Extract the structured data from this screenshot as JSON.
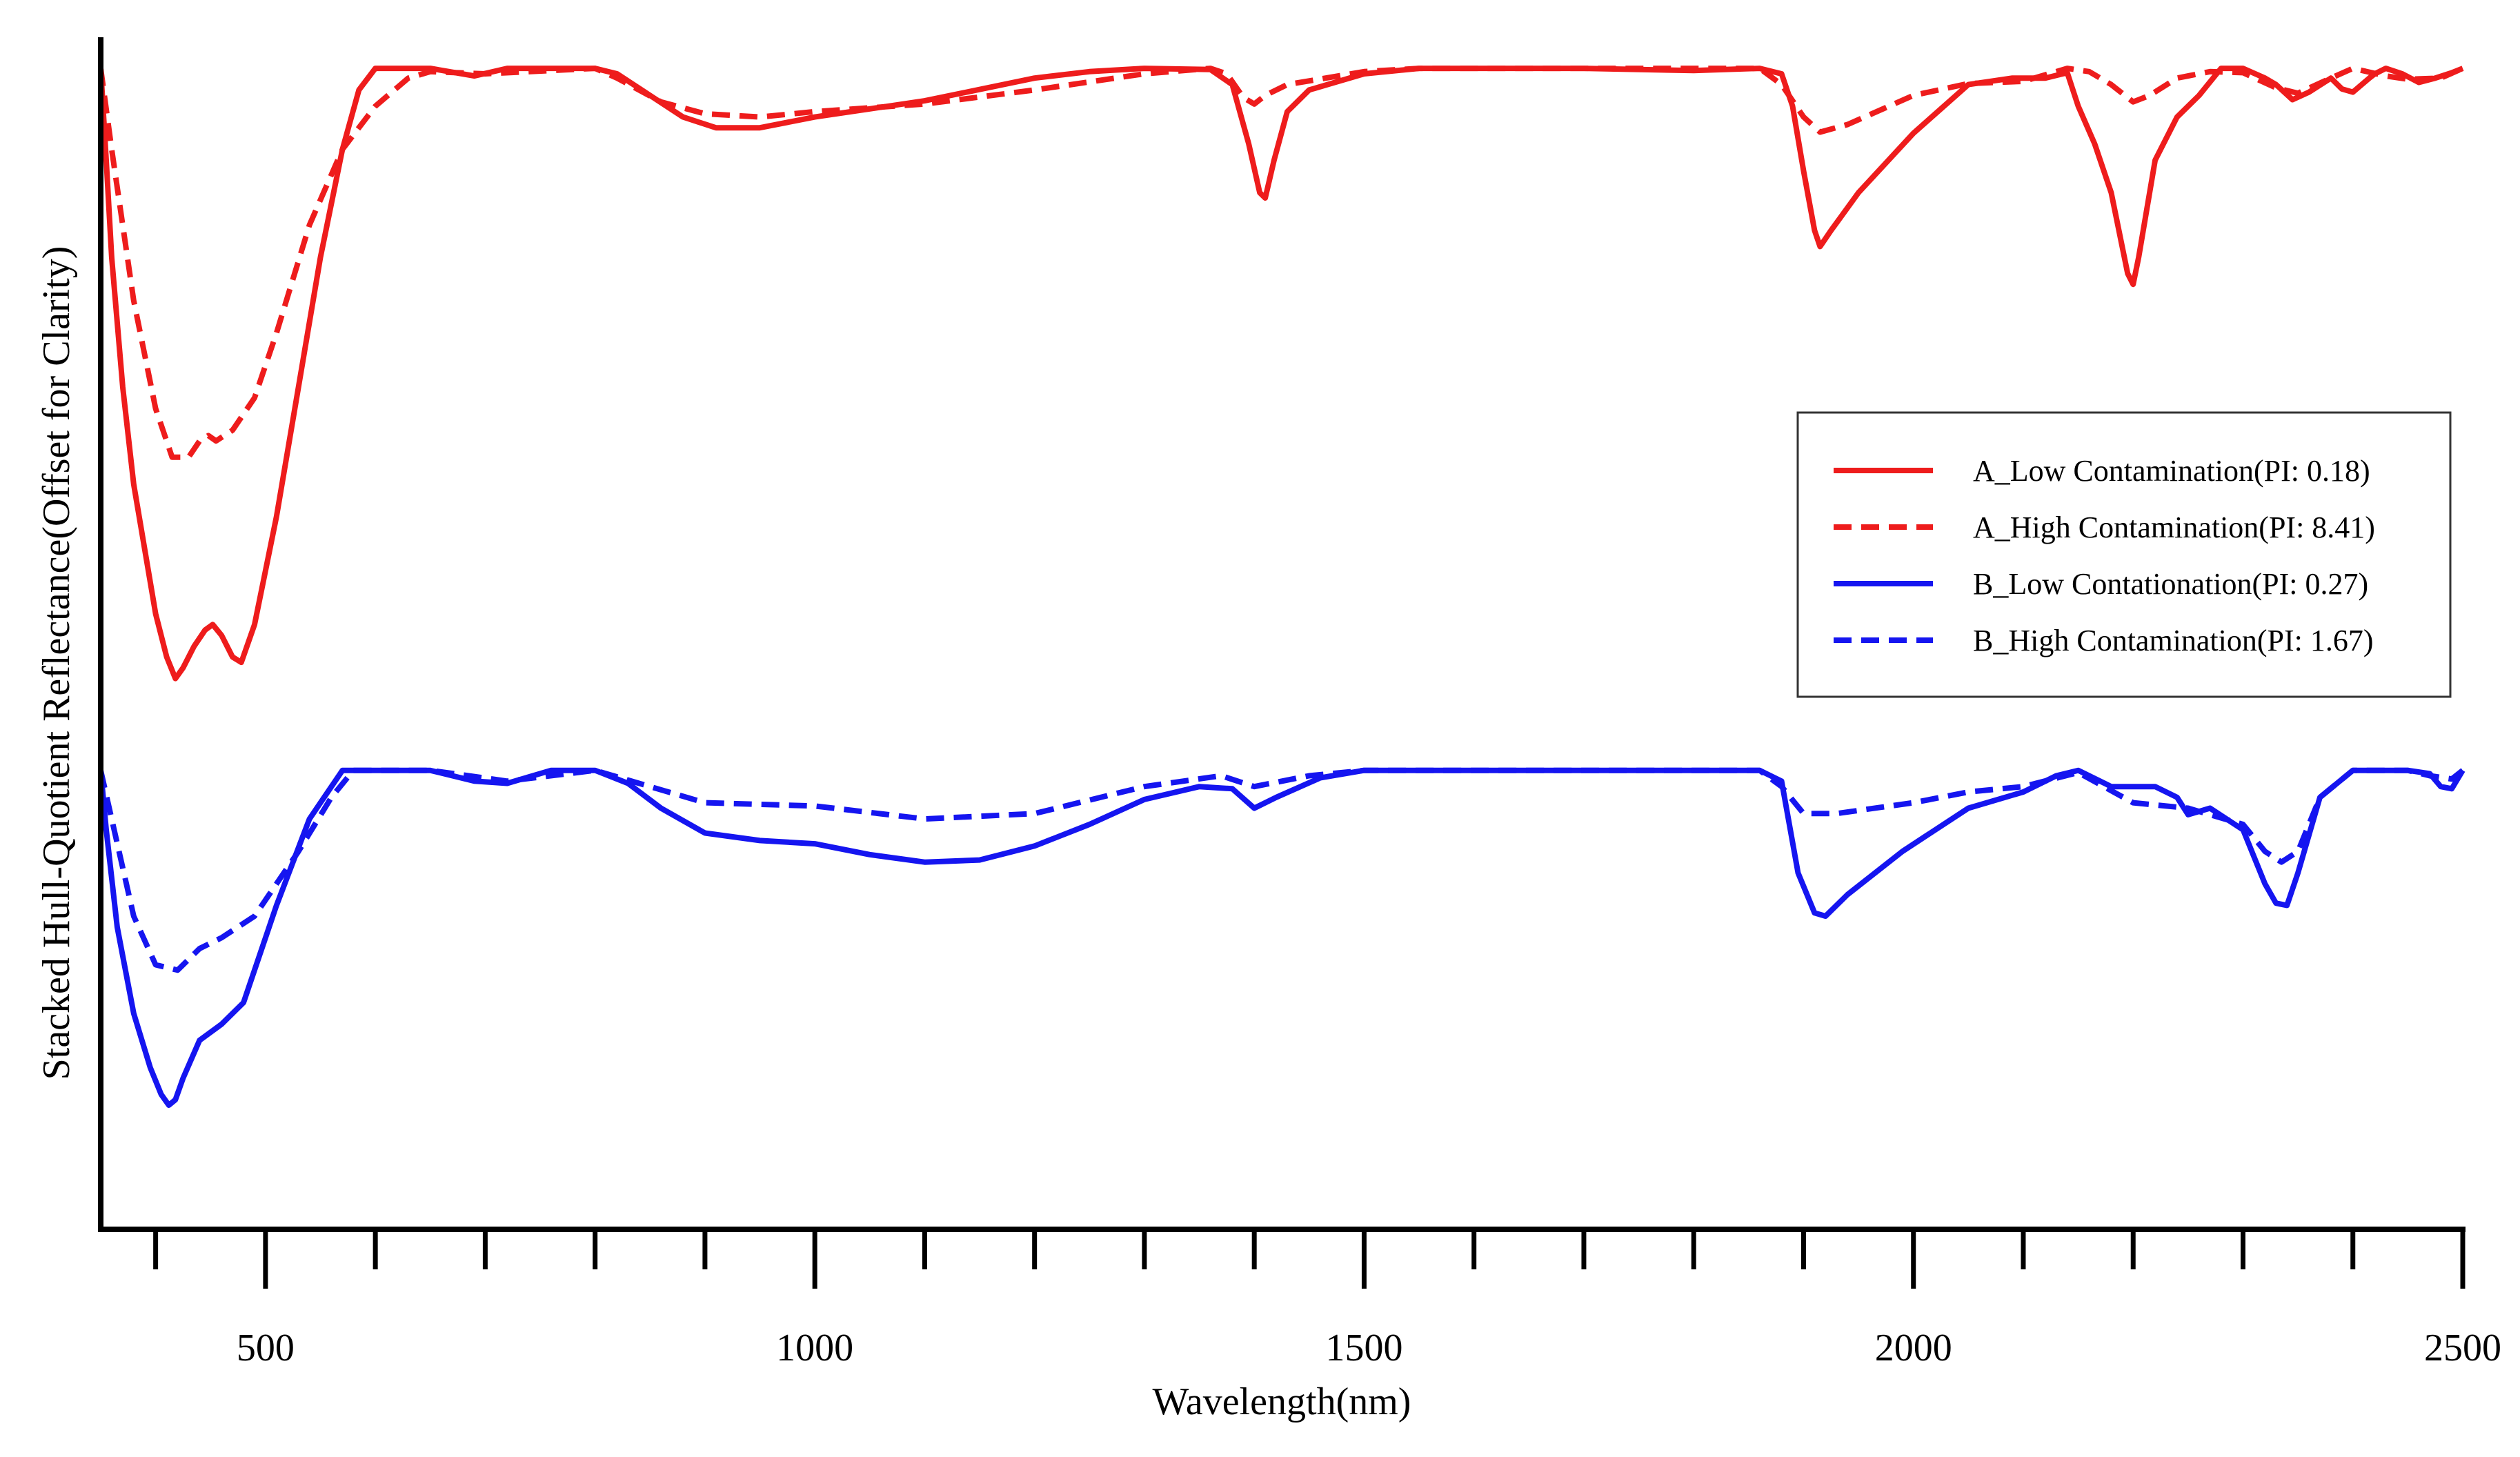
{
  "chart_data": {
    "type": "line",
    "title": "",
    "xlabel": "Wavelength(nm)",
    "ylabel": "Stacked Hull-Quotient Reflectance(Offset for Clarity)",
    "xlim": [
      350,
      2500
    ],
    "ylim": [
      0,
      1.1
    ],
    "x_major_ticks": [
      500,
      1000,
      1500,
      2000,
      2500
    ],
    "x_tick_labels": [
      "500",
      "1000",
      "1500",
      "2000",
      "2500"
    ],
    "x_minor_step": 100,
    "y_ticks_shown": false,
    "grid": false,
    "legend": {
      "position": "right",
      "entries": [
        {
          "label": "A_Low Contamination(PI: 0.18)",
          "color": "#ee1c1c",
          "style": "solid"
        },
        {
          "label": "A_High Contamination(PI: 8.41)",
          "color": "#ee1c1c",
          "style": "dashed"
        },
        {
          "label": "B_Low Contationation(PI: 0.27)",
          "color": "#1515f0",
          "style": "solid"
        },
        {
          "label": "B_High Contamination(PI: 1.67)",
          "color": "#1515f0",
          "style": "dashed"
        }
      ]
    },
    "series": [
      {
        "name": "A_Low Contamination(PI: 0.18)",
        "color": "#ee1c1c",
        "style": "solid",
        "points": [
          [
            350,
            1.075
          ],
          [
            355,
            0.99
          ],
          [
            360,
            0.9
          ],
          [
            370,
            0.78
          ],
          [
            380,
            0.69
          ],
          [
            390,
            0.63
          ],
          [
            400,
            0.57
          ],
          [
            410,
            0.53
          ],
          [
            418,
            0.51
          ],
          [
            425,
            0.52
          ],
          [
            435,
            0.54
          ],
          [
            445,
            0.555
          ],
          [
            452,
            0.56
          ],
          [
            460,
            0.55
          ],
          [
            470,
            0.53
          ],
          [
            478,
            0.525
          ],
          [
            490,
            0.56
          ],
          [
            510,
            0.66
          ],
          [
            530,
            0.78
          ],
          [
            550,
            0.9
          ],
          [
            570,
            1.0
          ],
          [
            585,
            1.055
          ],
          [
            600,
            1.075
          ],
          [
            650,
            1.075
          ],
          [
            690,
            1.068
          ],
          [
            720,
            1.075
          ],
          [
            800,
            1.075
          ],
          [
            820,
            1.07
          ],
          [
            850,
            1.05
          ],
          [
            880,
            1.03
          ],
          [
            910,
            1.02
          ],
          [
            950,
            1.02
          ],
          [
            1000,
            1.03
          ],
          [
            1100,
            1.045
          ],
          [
            1200,
            1.066
          ],
          [
            1250,
            1.072
          ],
          [
            1300,
            1.075
          ],
          [
            1360,
            1.074
          ],
          [
            1380,
            1.06
          ],
          [
            1395,
            1.005
          ],
          [
            1405,
            0.96
          ],
          [
            1410,
            0.955
          ],
          [
            1418,
            0.99
          ],
          [
            1430,
            1.035
          ],
          [
            1450,
            1.055
          ],
          [
            1500,
            1.07
          ],
          [
            1550,
            1.075
          ],
          [
            1700,
            1.075
          ],
          [
            1800,
            1.073
          ],
          [
            1860,
            1.075
          ],
          [
            1880,
            1.07
          ],
          [
            1890,
            1.04
          ],
          [
            1900,
            0.98
          ],
          [
            1910,
            0.925
          ],
          [
            1915,
            0.91
          ],
          [
            1925,
            0.925
          ],
          [
            1950,
            0.96
          ],
          [
            2000,
            1.015
          ],
          [
            2050,
            1.06
          ],
          [
            2090,
            1.066
          ],
          [
            2120,
            1.066
          ],
          [
            2140,
            1.071
          ],
          [
            2150,
            1.04
          ],
          [
            2165,
            1.005
          ],
          [
            2180,
            0.96
          ],
          [
            2195,
            0.885
          ],
          [
            2200,
            0.875
          ],
          [
            2205,
            0.9
          ],
          [
            2220,
            0.99
          ],
          [
            2240,
            1.03
          ],
          [
            2260,
            1.05
          ],
          [
            2280,
            1.075
          ],
          [
            2300,
            1.075
          ],
          [
            2320,
            1.066
          ],
          [
            2330,
            1.06
          ],
          [
            2345,
            1.046
          ],
          [
            2360,
            1.053
          ],
          [
            2380,
            1.066
          ],
          [
            2390,
            1.056
          ],
          [
            2400,
            1.053
          ],
          [
            2415,
            1.066
          ],
          [
            2420,
            1.07
          ],
          [
            2430,
            1.075
          ],
          [
            2445,
            1.07
          ],
          [
            2460,
            1.062
          ],
          [
            2475,
            1.066
          ],
          [
            2490,
            1.071
          ],
          [
            2500,
            1.075
          ]
        ]
      },
      {
        "name": "A_High Contamination(PI: 8.41)",
        "color": "#ee1c1c",
        "style": "dashed",
        "points": [
          [
            350,
            1.075
          ],
          [
            360,
            1.0
          ],
          [
            380,
            0.86
          ],
          [
            400,
            0.76
          ],
          [
            415,
            0.715
          ],
          [
            430,
            0.715
          ],
          [
            440,
            0.73
          ],
          [
            448,
            0.735
          ],
          [
            455,
            0.73
          ],
          [
            470,
            0.74
          ],
          [
            490,
            0.77
          ],
          [
            510,
            0.83
          ],
          [
            540,
            0.93
          ],
          [
            570,
            1.0
          ],
          [
            600,
            1.04
          ],
          [
            630,
            1.066
          ],
          [
            650,
            1.072
          ],
          [
            700,
            1.07
          ],
          [
            800,
            1.075
          ],
          [
            820,
            1.066
          ],
          [
            860,
            1.044
          ],
          [
            900,
            1.033
          ],
          [
            950,
            1.03
          ],
          [
            1000,
            1.035
          ],
          [
            1100,
            1.042
          ],
          [
            1200,
            1.055
          ],
          [
            1300,
            1.07
          ],
          [
            1360,
            1.075
          ],
          [
            1375,
            1.07
          ],
          [
            1390,
            1.048
          ],
          [
            1400,
            1.042
          ],
          [
            1410,
            1.05
          ],
          [
            1430,
            1.06
          ],
          [
            1500,
            1.072
          ],
          [
            1550,
            1.075
          ],
          [
            1800,
            1.075
          ],
          [
            1860,
            1.075
          ],
          [
            1880,
            1.06
          ],
          [
            1900,
            1.03
          ],
          [
            1915,
            1.016
          ],
          [
            1940,
            1.023
          ],
          [
            2000,
            1.05
          ],
          [
            2050,
            1.061
          ],
          [
            2100,
            1.063
          ],
          [
            2140,
            1.075
          ],
          [
            2160,
            1.072
          ],
          [
            2180,
            1.06
          ],
          [
            2200,
            1.044
          ],
          [
            2215,
            1.05
          ],
          [
            2240,
            1.066
          ],
          [
            2270,
            1.072
          ],
          [
            2300,
            1.071
          ],
          [
            2330,
            1.057
          ],
          [
            2350,
            1.052
          ],
          [
            2380,
            1.066
          ],
          [
            2400,
            1.075
          ],
          [
            2430,
            1.068
          ],
          [
            2450,
            1.065
          ],
          [
            2480,
            1.066
          ],
          [
            2500,
            1.075
          ]
        ]
      },
      {
        "name": "B_Low Contationation(PI: 0.27)",
        "color": "#1515f0",
        "style": "solid",
        "points": [
          [
            350,
            0.425
          ],
          [
            355,
            0.37
          ],
          [
            365,
            0.28
          ],
          [
            380,
            0.2
          ],
          [
            395,
            0.15
          ],
          [
            405,
            0.125
          ],
          [
            412,
            0.115
          ],
          [
            418,
            0.12
          ],
          [
            425,
            0.14
          ],
          [
            440,
            0.175
          ],
          [
            460,
            0.19
          ],
          [
            480,
            0.21
          ],
          [
            510,
            0.3
          ],
          [
            540,
            0.38
          ],
          [
            570,
            0.425
          ],
          [
            600,
            0.425
          ],
          [
            650,
            0.425
          ],
          [
            690,
            0.415
          ],
          [
            720,
            0.413
          ],
          [
            760,
            0.425
          ],
          [
            800,
            0.425
          ],
          [
            830,
            0.413
          ],
          [
            860,
            0.39
          ],
          [
            900,
            0.367
          ],
          [
            950,
            0.36
          ],
          [
            1000,
            0.357
          ],
          [
            1050,
            0.347
          ],
          [
            1100,
            0.34
          ],
          [
            1150,
            0.342
          ],
          [
            1200,
            0.355
          ],
          [
            1250,
            0.375
          ],
          [
            1300,
            0.398
          ],
          [
            1350,
            0.41
          ],
          [
            1380,
            0.408
          ],
          [
            1400,
            0.39
          ],
          [
            1420,
            0.4
          ],
          [
            1460,
            0.418
          ],
          [
            1500,
            0.425
          ],
          [
            1700,
            0.425
          ],
          [
            1860,
            0.425
          ],
          [
            1880,
            0.415
          ],
          [
            1895,
            0.33
          ],
          [
            1910,
            0.293
          ],
          [
            1920,
            0.29
          ],
          [
            1940,
            0.31
          ],
          [
            1990,
            0.35
          ],
          [
            2050,
            0.39
          ],
          [
            2100,
            0.405
          ],
          [
            2130,
            0.42
          ],
          [
            2150,
            0.425
          ],
          [
            2180,
            0.41
          ],
          [
            2220,
            0.41
          ],
          [
            2240,
            0.4
          ],
          [
            2250,
            0.384
          ],
          [
            2270,
            0.39
          ],
          [
            2300,
            0.37
          ],
          [
            2320,
            0.32
          ],
          [
            2330,
            0.302
          ],
          [
            2340,
            0.3
          ],
          [
            2350,
            0.33
          ],
          [
            2370,
            0.4
          ],
          [
            2400,
            0.425
          ],
          [
            2450,
            0.425
          ],
          [
            2470,
            0.422
          ],
          [
            2480,
            0.41
          ],
          [
            2490,
            0.408
          ],
          [
            2500,
            0.425
          ]
        ]
      },
      {
        "name": "B_High Contamination(PI: 1.67)",
        "color": "#1515f0",
        "style": "dashed",
        "points": [
          [
            350,
            0.425
          ],
          [
            360,
            0.38
          ],
          [
            380,
            0.29
          ],
          [
            400,
            0.245
          ],
          [
            420,
            0.24
          ],
          [
            440,
            0.26
          ],
          [
            460,
            0.27
          ],
          [
            490,
            0.29
          ],
          [
            530,
            0.35
          ],
          [
            560,
            0.4
          ],
          [
            580,
            0.425
          ],
          [
            650,
            0.425
          ],
          [
            720,
            0.415
          ],
          [
            800,
            0.425
          ],
          [
            850,
            0.41
          ],
          [
            900,
            0.395
          ],
          [
            1000,
            0.392
          ],
          [
            1100,
            0.38
          ],
          [
            1200,
            0.385
          ],
          [
            1300,
            0.41
          ],
          [
            1370,
            0.42
          ],
          [
            1400,
            0.41
          ],
          [
            1450,
            0.42
          ],
          [
            1500,
            0.425
          ],
          [
            1700,
            0.425
          ],
          [
            1860,
            0.425
          ],
          [
            1880,
            0.41
          ],
          [
            1900,
            0.385
          ],
          [
            1930,
            0.385
          ],
          [
            2000,
            0.395
          ],
          [
            2050,
            0.405
          ],
          [
            2100,
            0.41
          ],
          [
            2150,
            0.423
          ],
          [
            2200,
            0.395
          ],
          [
            2250,
            0.39
          ],
          [
            2300,
            0.375
          ],
          [
            2320,
            0.35
          ],
          [
            2335,
            0.34
          ],
          [
            2350,
            0.35
          ],
          [
            2370,
            0.4
          ],
          [
            2400,
            0.425
          ],
          [
            2450,
            0.425
          ],
          [
            2470,
            0.42
          ],
          [
            2490,
            0.417
          ],
          [
            2500,
            0.425
          ]
        ]
      }
    ]
  }
}
